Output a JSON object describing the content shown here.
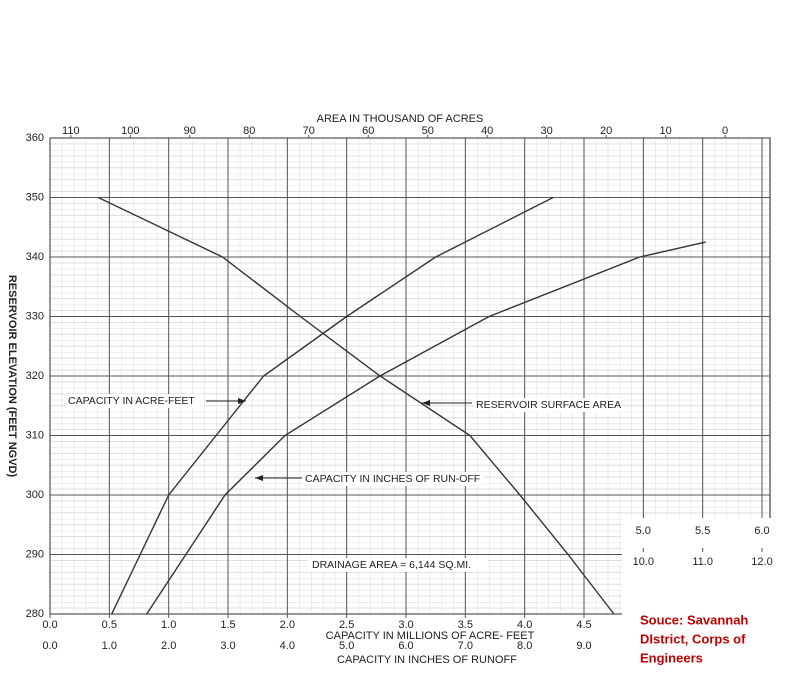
{
  "chart_data": {
    "type": "line",
    "ylabel": "RESERVOIR ELEVATION (FEET NGVD)",
    "ylim": [
      280,
      360
    ],
    "yticks": [
      280,
      290,
      300,
      310,
      320,
      330,
      340,
      350,
      360
    ],
    "xlabel": "CAPACITY IN  MILLIONS OF ACRE- FEET",
    "xlim": [
      0,
      6
    ],
    "xticks": [
      {
        "value": 0,
        "label": "0.0"
      },
      {
        "value": 0.5,
        "label": "0.5"
      },
      {
        "value": 1,
        "label": "1.0"
      },
      {
        "value": 1.5,
        "label": "1.5"
      },
      {
        "value": 2,
        "label": "2.0"
      },
      {
        "value": 2.5,
        "label": "2.5"
      },
      {
        "value": 3,
        "label": "3.0"
      },
      {
        "value": 3.5,
        "label": "3.5"
      },
      {
        "value": 4,
        "label": "4.0"
      },
      {
        "value": 4.5,
        "label": "4.5"
      },
      {
        "value": 5,
        "label": "5.0"
      },
      {
        "value": 5.5,
        "label": "5.5"
      },
      {
        "value": 6,
        "label": "6.0"
      }
    ],
    "x2label": "CAPACITY IN  INCHES OF RUNOFF",
    "x2lim": [
      0,
      12
    ],
    "x2ticks": [
      {
        "value": 0,
        "label": "0.0"
      },
      {
        "value": 1,
        "label": "1.0"
      },
      {
        "value": 2,
        "label": "2.0"
      },
      {
        "value": 3,
        "label": "3.0"
      },
      {
        "value": 4,
        "label": "4.0"
      },
      {
        "value": 5,
        "label": "5.0"
      },
      {
        "value": 6,
        "label": "6.0"
      },
      {
        "value": 7,
        "label": "7.0"
      },
      {
        "value": 8,
        "label": "8.0"
      },
      {
        "value": 9,
        "label": "9.0"
      },
      {
        "value": 10,
        "label": "10.0"
      },
      {
        "value": 11,
        "label": "11.0"
      },
      {
        "value": 12,
        "label": "12.0"
      }
    ],
    "x3label": "AREA IN THOUSAND OF ACRES",
    "x3lim": [
      113.5,
      -6.2
    ],
    "x3ticks": [
      110,
      100,
      90,
      80,
      70,
      60,
      50,
      40,
      30,
      20,
      10,
      0
    ],
    "grid": true,
    "series": [
      {
        "name": "CAPACITY IN ACRE-FEET",
        "color": "#333333",
        "axis": "x",
        "x": [
          0.52,
          1.0,
          1.4,
          1.8,
          2.5,
          3.25,
          4.24
        ],
        "values": [
          280,
          300,
          310,
          320,
          330,
          340,
          350
        ]
      },
      {
        "name": "CAPACITY IN INCHES OF RUN-OFF",
        "color": "#333333",
        "axis": "x2",
        "x": [
          1.63,
          2.95,
          3.96,
          5.56,
          7.4,
          9.94,
          11.05
        ],
        "values": [
          280,
          300,
          310,
          320,
          330,
          340,
          342.5
        ]
      },
      {
        "name": "RESERVOIR SURFACE AREA",
        "color": "#333333",
        "axis": "x3",
        "x": [
          105.4,
          84.5,
          71.4,
          58,
          42.9,
          34.5,
          26.4,
          18.7
        ],
        "values": [
          350,
          340,
          330,
          320,
          310,
          300,
          290,
          280
        ]
      }
    ],
    "annotations": [
      "DRAINAGE AREA = 6,144 SQ.MI."
    ],
    "source": [
      "Souce:  Savannah",
      "DIstrict, Corps of",
      "Engineers"
    ]
  }
}
